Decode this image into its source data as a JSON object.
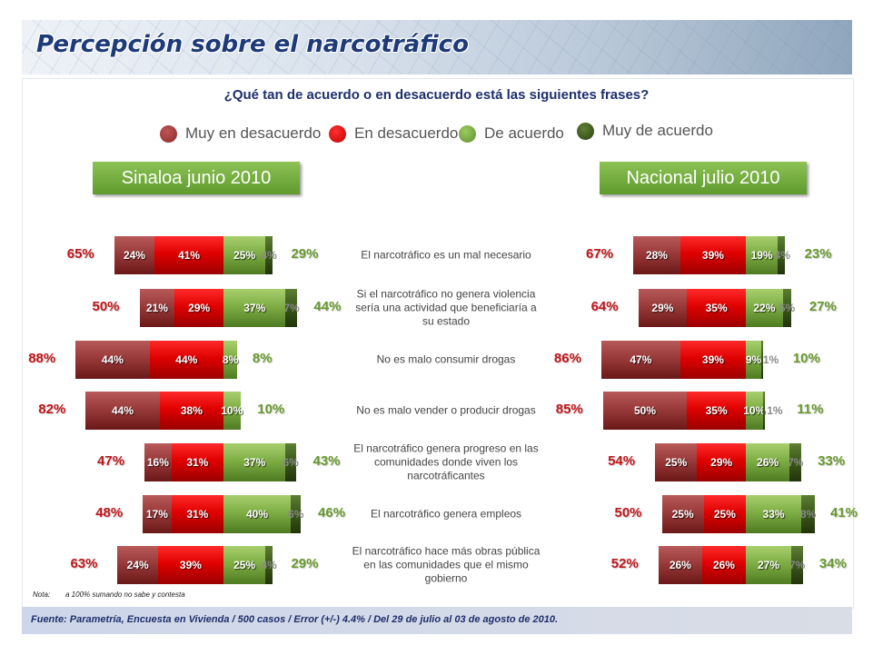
{
  "header": {
    "title": "Percepción sobre el narcotráfico"
  },
  "question": "¿Qué tan de acuerdo o en desacuerdo está las siguientes frases?",
  "legend": [
    {
      "label": "Muy en desacuerdo",
      "color": "#a33a3a"
    },
    {
      "label": "En desacuerdo",
      "color": "#e00000"
    },
    {
      "label": "De acuerdo",
      "color": "#7fae45"
    },
    {
      "label": "Muy de acuerdo",
      "color": "#3d5a1c"
    }
  ],
  "regions": {
    "left": "Sinaloa junio 2010",
    "right": "Nacional julio 2010"
  },
  "statements": [
    "El narcotráfico es un mal necesario",
    "Si el narcotráfico no genera violencia sería una actividad que beneficiaría a su estado",
    "No es malo consumir drogas",
    "No es malo vender o producir drogas",
    "El narcotráfico genera progreso en las comunidades donde viven los narcotráficantes",
    "El narcotráfico genera empleos",
    "El narcotráfico hace más obras pública en las comunidades que el mismo gobierno"
  ],
  "chart_data": [
    {
      "type": "bar",
      "title": "Sinaloa junio 2010",
      "categories": [
        "El narcotráfico es un mal necesario",
        "Si el narcotráfico no genera violencia sería una actividad que beneficiaría a su estado",
        "No es malo consumir drogas",
        "No es malo vender o producir drogas",
        "El narcotráfico genera progreso en las comunidades donde viven los narcotráficantes",
        "El narcotráfico genera empleos",
        "El narcotráfico hace más obras pública en las comunidades que el mismo gobierno"
      ],
      "series": [
        {
          "name": "Muy en desacuerdo",
          "values": [
            24,
            21,
            44,
            44,
            16,
            17,
            24
          ]
        },
        {
          "name": "En desacuerdo",
          "values": [
            41,
            29,
            44,
            38,
            31,
            31,
            39
          ]
        },
        {
          "name": "De acuerdo",
          "values": [
            25,
            37,
            8,
            10,
            37,
            40,
            25
          ]
        },
        {
          "name": "Muy de acuerdo",
          "values": [
            4,
            7,
            0,
            0,
            6,
            6,
            4
          ]
        }
      ],
      "labels": [
        [
          "24%",
          "41%",
          "25%",
          "4%"
        ],
        [
          "21%",
          "29%",
          "37%",
          "7%"
        ],
        [
          "44%",
          "44%",
          "8%",
          ""
        ],
        [
          "44%",
          "38%",
          "10%",
          ""
        ],
        [
          "16%",
          "31%",
          "37%",
          "6%"
        ],
        [
          "17%",
          "31%",
          "40%",
          "6%"
        ],
        [
          "24%",
          "39%",
          "25%",
          "4%"
        ]
      ],
      "total_disagree": [
        "65%",
        "50%",
        "88%",
        "82%",
        "47%",
        "48%",
        "63%"
      ],
      "total_agree": [
        "29%",
        "44%",
        "8%",
        "10%",
        "43%",
        "46%",
        "29%"
      ]
    },
    {
      "type": "bar",
      "title": "Nacional julio 2010",
      "categories": [
        "El narcotráfico es un mal necesario",
        "Si el narcotráfico no genera violencia sería una actividad que beneficiaría a su estado",
        "No es malo consumir drogas",
        "No es malo vender o producir drogas",
        "El narcotráfico genera progreso en las comunidades donde viven los narcotráficantes",
        "El narcotráfico genera empleos",
        "El narcotráfico hace más obras pública en las comunidades que el mismo gobierno"
      ],
      "series": [
        {
          "name": "Muy en desacuerdo",
          "values": [
            28,
            29,
            47,
            50,
            25,
            25,
            26
          ]
        },
        {
          "name": "En desacuerdo",
          "values": [
            39,
            35,
            39,
            35,
            29,
            25,
            26
          ]
        },
        {
          "name": "De acuerdo",
          "values": [
            19,
            22,
            9,
            10,
            26,
            33,
            27
          ]
        },
        {
          "name": "Muy de acuerdo",
          "values": [
            4,
            5,
            1,
            1,
            7,
            8,
            7
          ]
        }
      ],
      "labels": [
        [
          "28%",
          "39%",
          "19%",
          "4%"
        ],
        [
          "29%",
          "35%",
          "22%",
          "5%"
        ],
        [
          "47%",
          "39%",
          "9%",
          "1%"
        ],
        [
          "50%",
          "35%",
          "10%",
          "1%"
        ],
        [
          "25%",
          "29%",
          "26%",
          "7%"
        ],
        [
          "25%",
          "25%",
          "33%",
          "8%"
        ],
        [
          "26%",
          "26%",
          "27%",
          "7%"
        ]
      ],
      "total_disagree": [
        "67%",
        "64%",
        "86%",
        "85%",
        "54%",
        "50%",
        "52%"
      ],
      "total_agree": [
        "23%",
        "27%",
        "10%",
        "11%",
        "33%",
        "41%",
        "34%"
      ]
    }
  ],
  "nota": {
    "label": "Nota:",
    "text": "a 100% sumando no sabe y contesta"
  },
  "footer": "Fuente: Parametría, Encuesta en Vivienda / 500 casos / Error (+/-) 4.4% / Del 29 de julio al 03 de agosto de 2010."
}
